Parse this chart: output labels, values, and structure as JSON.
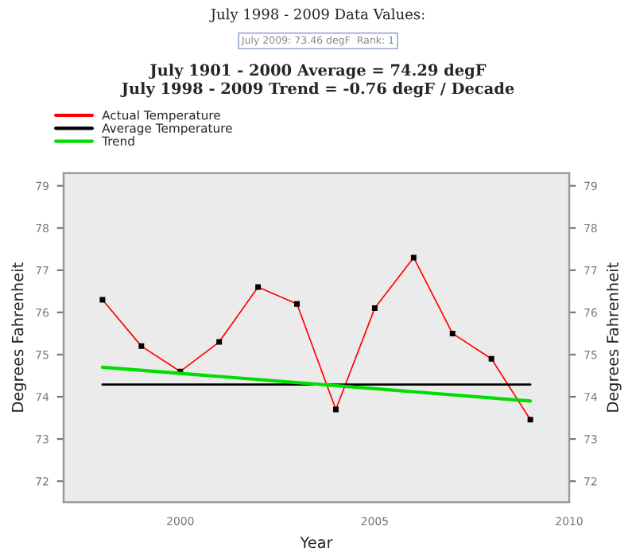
{
  "chart_data": {
    "type": "line",
    "title": "July 1901 - 2000 Average = 74.29 degF",
    "subtitle": "July 1998 - 2009 Trend = -0.76 degF / Decade",
    "annotations": [
      "July 1998 - 2009 Data Values:",
      "July 2009: 73.46 degF  Rank: 1"
    ],
    "xlabel": "Year",
    "ylabel": "Degrees Fahrenheit",
    "y2label": "Degrees Fahrenheit",
    "series": [
      {
        "name": "Actual Temperature",
        "color": "#ff0000",
        "marker": "square",
        "x": [
          1998,
          1999,
          2000,
          2001,
          2002,
          2003,
          2004,
          2005,
          2006,
          2007,
          2008,
          2009
        ],
        "values": [
          76.3,
          75.2,
          74.6,
          75.3,
          76.6,
          76.2,
          73.7,
          76.1,
          77.3,
          75.5,
          74.9,
          73.46
        ]
      },
      {
        "name": "Average Temperature",
        "color": "#000000",
        "x": [
          1998,
          2009
        ],
        "values": [
          74.29,
          74.29
        ]
      },
      {
        "name": "Trend",
        "color": "#00dd00",
        "x": [
          1998,
          2009
        ],
        "values": [
          74.7,
          73.9
        ]
      }
    ],
    "xlim": [
      1997,
      2010
    ],
    "xticks": [
      2000,
      2005,
      2010
    ],
    "ylim": [
      71.5,
      79.3
    ],
    "yticks": [
      72,
      73,
      74,
      75,
      76,
      77,
      78,
      79
    ],
    "y2lim": [
      71.5,
      79.3
    ],
    "y2ticks": [
      72,
      73,
      74,
      75,
      76,
      77,
      78,
      79
    ],
    "grid": false,
    "legend": "top left"
  }
}
